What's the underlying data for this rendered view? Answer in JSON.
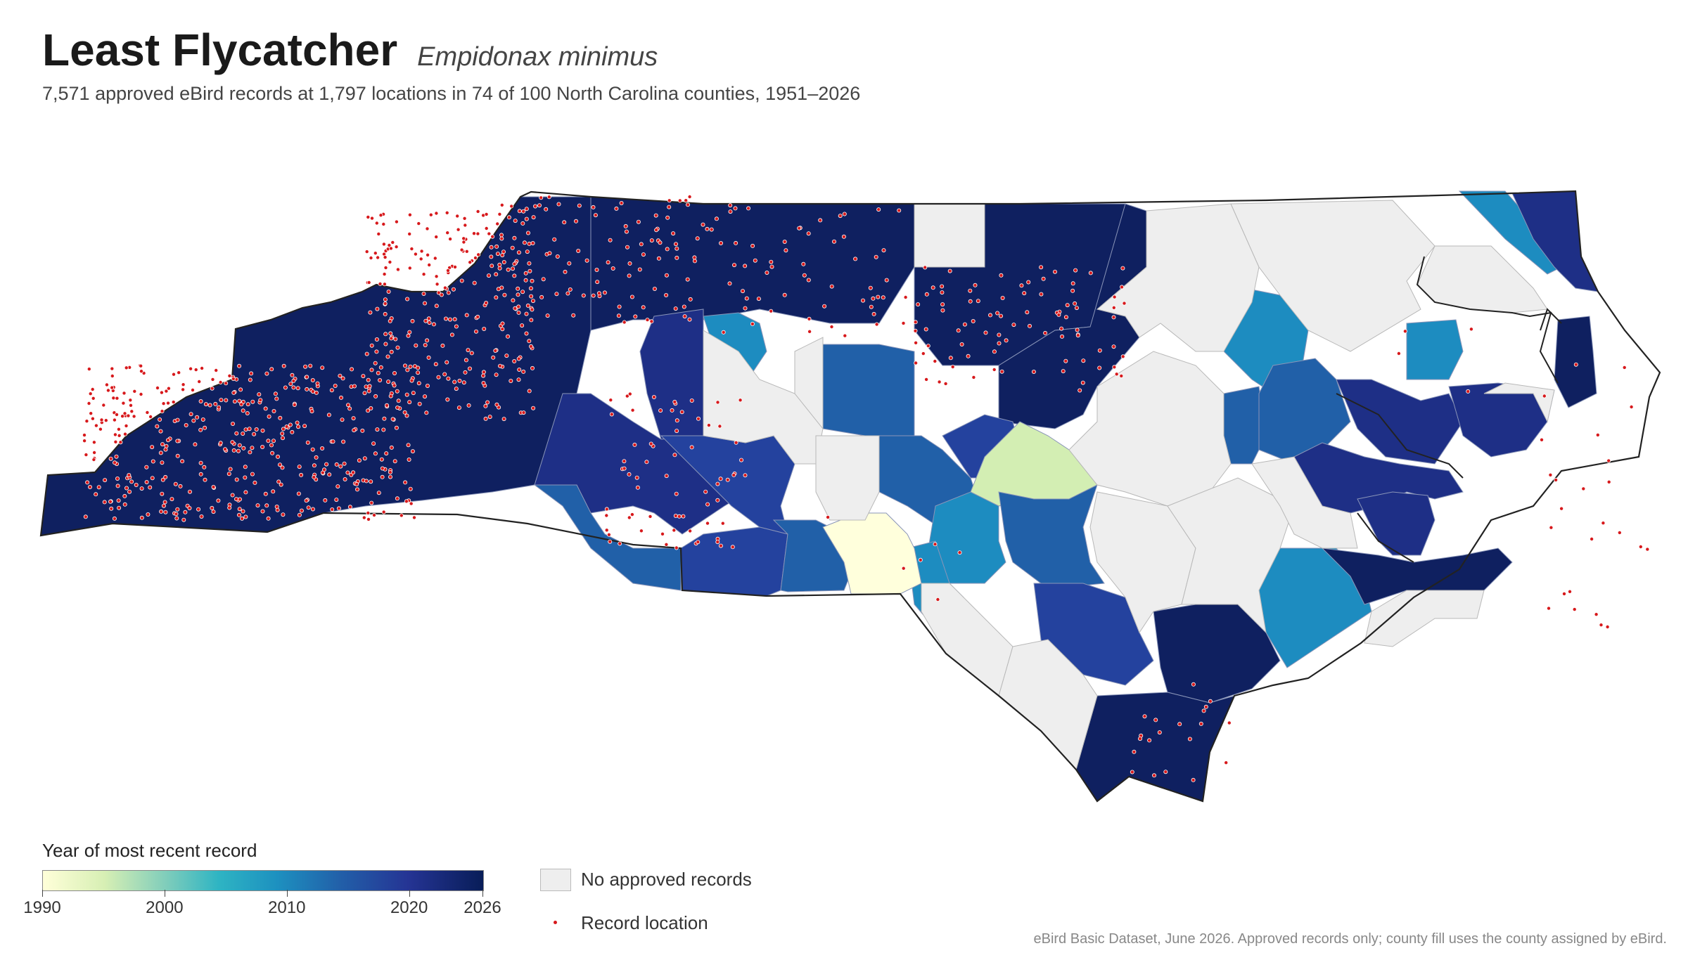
{
  "header": {
    "title": "Least Flycatcher",
    "scientific_name": "Empidonax minimus",
    "subtitle": "7,571 approved eBird records at 1,797 locations in 74 of 100 North Carolina counties, 1951–2026"
  },
  "legend": {
    "colorbar_title": "Year of most recent record",
    "ticks": [
      "1990",
      "2000",
      "2010",
      "2020",
      "2026"
    ],
    "tick_years": [
      1990,
      2000,
      2010,
      2020,
      2026
    ],
    "range": [
      1990,
      2026
    ],
    "no_records_label": "No approved records",
    "record_location_label": "Record location"
  },
  "colors": {
    "no_records": "#eeeeee",
    "record_dot": "#d7191c",
    "scale": [
      "#ffffd9",
      "#d7efb4",
      "#7fcdbb",
      "#2eb4c3",
      "#1d91c0",
      "#225ea8",
      "#253494",
      "#081d58"
    ]
  },
  "source": "eBird Basic Dataset, June 2026. Approved records only; county fill uses the county assigned by eBird."
}
